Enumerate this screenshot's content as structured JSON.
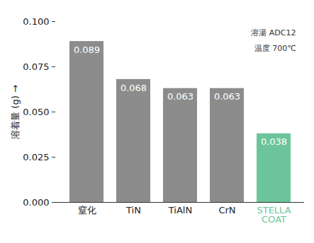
{
  "chart_data": {
    "type": "bar",
    "categories": [
      "窒化",
      "TiN",
      "TiAlN",
      "CrN",
      "STELLA\nCOAT"
    ],
    "values": [
      0.089,
      0.068,
      0.063,
      0.063,
      0.038
    ],
    "colors": [
      "#8c8c8c",
      "#8c8c8c",
      "#8c8c8c",
      "#8c8c8c",
      "#6cc59a"
    ],
    "ylabel": "溶着量 (g)",
    "annotations": [
      "溶湯 ADC12",
      "温度 700℃"
    ],
    "ylim": [
      0,
      0.1
    ],
    "yticks": [
      {
        "value": 0,
        "label": "0.000"
      },
      {
        "value": 0.025,
        "label": "0.025"
      },
      {
        "value": 0.05,
        "label": "0.050"
      },
      {
        "value": 0.075,
        "label": "0.075"
      },
      {
        "value": 0.1,
        "label": "0.100"
      }
    ],
    "grid": false,
    "data_labels": true
  }
}
